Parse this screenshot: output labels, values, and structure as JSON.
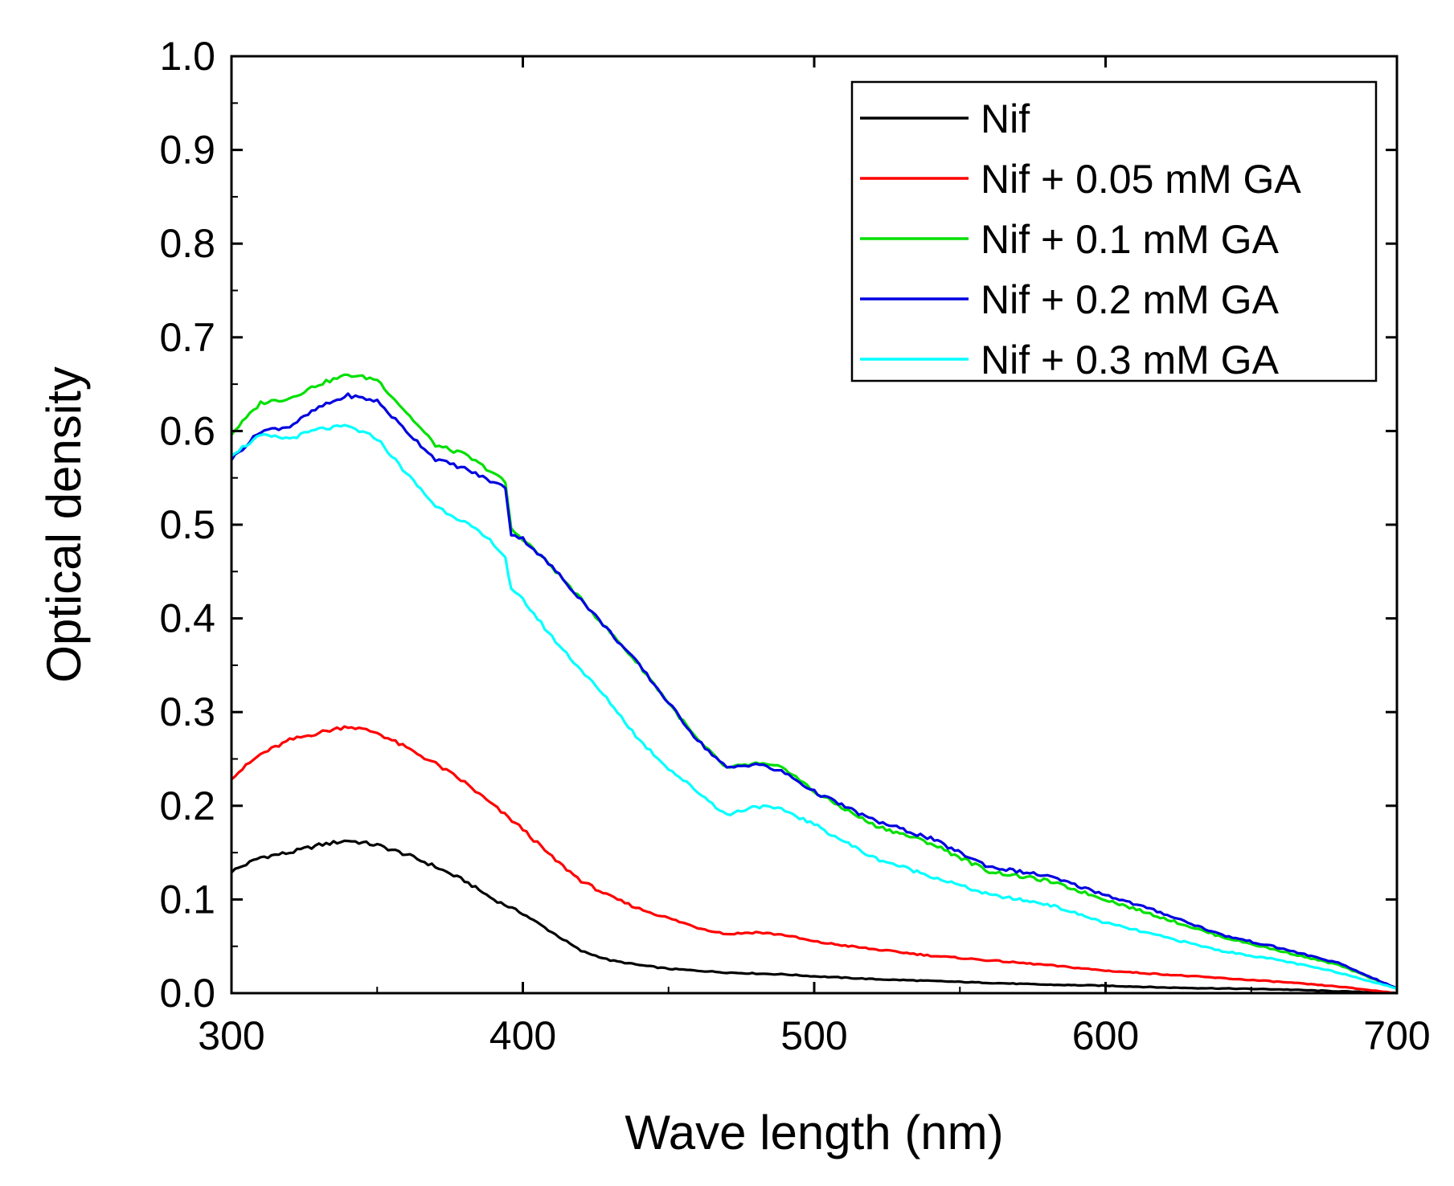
{
  "chart_data": {
    "type": "line",
    "title": "",
    "xlabel": "Wave length (nm)",
    "ylabel": "Optical density",
    "xlim": [
      300,
      700
    ],
    "ylim": [
      0.0,
      1.0
    ],
    "x_ticks": [
      "300",
      "400",
      "500",
      "600",
      "700"
    ],
    "y_ticks": [
      "0.0",
      "0.1",
      "0.2",
      "0.3",
      "0.4",
      "0.5",
      "0.6",
      "0.7",
      "0.8",
      "0.9",
      "1.0"
    ],
    "grid": false,
    "legend_position": "top-right",
    "series": [
      {
        "name": "Nif",
        "color": "#000000",
        "x": [
          300,
          310,
          320,
          330,
          340,
          350,
          360,
          370,
          380,
          390,
          400,
          410,
          420,
          430,
          440,
          450,
          460,
          470,
          480,
          490,
          500,
          520,
          540,
          560,
          580,
          600,
          620,
          640,
          660,
          680,
          700
        ],
        "y": [
          0.13,
          0.145,
          0.15,
          0.158,
          0.163,
          0.158,
          0.148,
          0.135,
          0.12,
          0.1,
          0.085,
          0.065,
          0.045,
          0.035,
          0.03,
          0.026,
          0.024,
          0.022,
          0.021,
          0.02,
          0.018,
          0.015,
          0.013,
          0.011,
          0.009,
          0.008,
          0.006,
          0.005,
          0.004,
          0.002,
          0.0
        ]
      },
      {
        "name": "Nif + 0.05 mM GA",
        "color": "#ff0000",
        "x": [
          300,
          310,
          320,
          330,
          340,
          350,
          360,
          370,
          380,
          390,
          400,
          410,
          420,
          430,
          440,
          450,
          460,
          470,
          480,
          490,
          500,
          520,
          540,
          560,
          580,
          600,
          620,
          640,
          660,
          680,
          700
        ],
        "y": [
          0.23,
          0.255,
          0.27,
          0.278,
          0.285,
          0.278,
          0.262,
          0.245,
          0.225,
          0.2,
          0.175,
          0.145,
          0.12,
          0.103,
          0.09,
          0.08,
          0.07,
          0.063,
          0.065,
          0.062,
          0.055,
          0.047,
          0.04,
          0.035,
          0.03,
          0.024,
          0.02,
          0.016,
          0.012,
          0.007,
          0.0
        ]
      },
      {
        "name": "Nif + 0.1 mM GA",
        "color": "#00e000",
        "x": [
          300,
          310,
          320,
          330,
          340,
          350,
          360,
          370,
          380,
          390,
          394,
          396,
          400,
          410,
          420,
          430,
          440,
          450,
          460,
          470,
          480,
          490,
          500,
          520,
          540,
          560,
          580,
          600,
          620,
          640,
          660,
          680,
          700
        ],
        "y": [
          0.597,
          0.63,
          0.635,
          0.65,
          0.66,
          0.655,
          0.62,
          0.585,
          0.575,
          0.555,
          0.545,
          0.495,
          0.485,
          0.455,
          0.42,
          0.385,
          0.35,
          0.31,
          0.27,
          0.24,
          0.245,
          0.24,
          0.215,
          0.18,
          0.16,
          0.13,
          0.12,
          0.1,
          0.08,
          0.06,
          0.045,
          0.03,
          0.005
        ]
      },
      {
        "name": "Nif + 0.2 mM GA",
        "color": "#0000e0",
        "x": [
          300,
          310,
          320,
          330,
          340,
          350,
          360,
          370,
          380,
          390,
          394,
          396,
          400,
          410,
          420,
          430,
          440,
          450,
          460,
          470,
          480,
          490,
          500,
          520,
          540,
          560,
          580,
          600,
          620,
          640,
          660,
          680,
          700
        ],
        "y": [
          0.57,
          0.6,
          0.605,
          0.625,
          0.638,
          0.632,
          0.6,
          0.57,
          0.56,
          0.545,
          0.54,
          0.49,
          0.485,
          0.455,
          0.42,
          0.385,
          0.35,
          0.31,
          0.27,
          0.24,
          0.245,
          0.235,
          0.215,
          0.185,
          0.165,
          0.135,
          0.125,
          0.105,
          0.085,
          0.062,
          0.048,
          0.032,
          0.005
        ]
      },
      {
        "name": "Nif + 0.3 mM GA",
        "color": "#00ffff",
        "x": [
          300,
          310,
          320,
          330,
          340,
          350,
          360,
          370,
          380,
          390,
          394,
          396,
          400,
          410,
          420,
          430,
          440,
          450,
          460,
          470,
          480,
          490,
          500,
          520,
          540,
          560,
          580,
          600,
          620,
          640,
          660,
          680,
          700
        ],
        "y": [
          0.575,
          0.595,
          0.592,
          0.602,
          0.605,
          0.592,
          0.555,
          0.52,
          0.503,
          0.48,
          0.465,
          0.43,
          0.42,
          0.38,
          0.345,
          0.31,
          0.27,
          0.24,
          0.215,
          0.19,
          0.2,
          0.195,
          0.18,
          0.145,
          0.125,
          0.105,
          0.095,
          0.075,
          0.06,
          0.045,
          0.035,
          0.022,
          0.005
        ]
      }
    ]
  }
}
